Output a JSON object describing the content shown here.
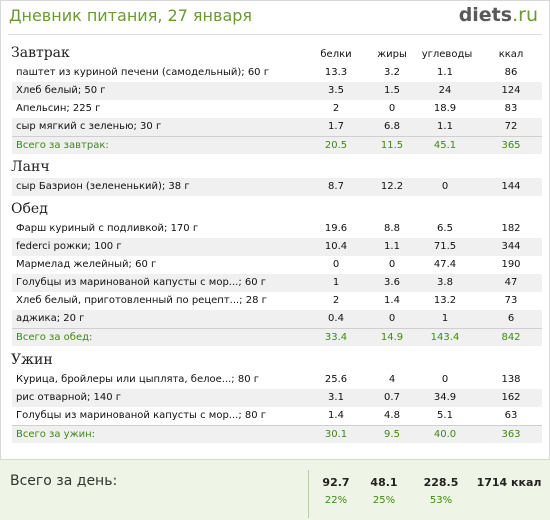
{
  "header": {
    "title": "Дневник питания, 27 января",
    "logo_main": "diets",
    "logo_tld": ".ru"
  },
  "columns": {
    "protein": "белки",
    "fat": "жиры",
    "carbs": "углеводы",
    "kcal": "ккал"
  },
  "sections": [
    {
      "title": "Завтрак",
      "items": [
        {
          "name": "паштет из куриной печени (самодельный); 60 г",
          "protein": "13.3",
          "fat": "3.2",
          "carbs": "1.1",
          "kcal": "86"
        },
        {
          "name": "Хлеб белый; 50 г",
          "protein": "3.5",
          "fat": "1.5",
          "carbs": "24",
          "kcal": "124"
        },
        {
          "name": "Апельсин; 225 г",
          "protein": "2",
          "fat": "0",
          "carbs": "18.9",
          "kcal": "83"
        },
        {
          "name": "сыр мягкий с зеленью; 30 г",
          "protein": "1.7",
          "fat": "6.8",
          "carbs": "1.1",
          "kcal": "72"
        }
      ],
      "total": {
        "name": "Всего за завтрак:",
        "protein": "20.5",
        "fat": "11.5",
        "carbs": "45.1",
        "kcal": "365"
      }
    },
    {
      "title": "Ланч",
      "items": [
        {
          "name": "сыр Базрион (зелененький); 38 г",
          "protein": "8.7",
          "fat": "12.2",
          "carbs": "0",
          "kcal": "144"
        }
      ]
    },
    {
      "title": "Обед",
      "items": [
        {
          "name": "Фарш куриный с подливкой; 170 г",
          "protein": "19.6",
          "fat": "8.8",
          "carbs": "6.5",
          "kcal": "182"
        },
        {
          "name": "federci рожки; 100 г",
          "protein": "10.4",
          "fat": "1.1",
          "carbs": "71.5",
          "kcal": "344"
        },
        {
          "name": "Мармелад желейный; 60 г",
          "protein": "0",
          "fat": "0",
          "carbs": "47.4",
          "kcal": "190"
        },
        {
          "name": "Голубцы из маринованой капусты с мор...; 60 г",
          "protein": "1",
          "fat": "3.6",
          "carbs": "3.8",
          "kcal": "47"
        },
        {
          "name": "Хлеб белый, приготовленный по рецепт...; 28 г",
          "protein": "2",
          "fat": "1.4",
          "carbs": "13.2",
          "kcal": "73"
        },
        {
          "name": "аджика; 20 г",
          "protein": "0.4",
          "fat": "0",
          "carbs": "1",
          "kcal": "6"
        }
      ],
      "total": {
        "name": "Всего за обед:",
        "protein": "33.4",
        "fat": "14.9",
        "carbs": "143.4",
        "kcal": "842"
      }
    },
    {
      "title": "Ужин",
      "items": [
        {
          "name": "Курица, бройлеры или цыплята, белое...; 80 г",
          "protein": "25.6",
          "fat": "4",
          "carbs": "0",
          "kcal": "138"
        },
        {
          "name": "рис отварной; 140 г",
          "protein": "3.1",
          "fat": "0.7",
          "carbs": "34.9",
          "kcal": "162"
        },
        {
          "name": "Голубцы из маринованой капусты с мор...; 80 г",
          "protein": "1.4",
          "fat": "4.8",
          "carbs": "5.1",
          "kcal": "63"
        }
      ],
      "total": {
        "name": "Всего за ужин:",
        "protein": "30.1",
        "fat": "9.5",
        "carbs": "40.0",
        "kcal": "363"
      }
    }
  ],
  "day_total": {
    "label": "Всего за день:",
    "protein": "92.7",
    "fat": "48.1",
    "carbs": "228.5",
    "kcal": "1714 ккал",
    "protein_pct": "22%",
    "fat_pct": "25%",
    "carbs_pct": "53%"
  },
  "colors": {
    "accent_green": "#6b9a33",
    "total_green": "#3d8a12",
    "logo_grey": "#595959",
    "row_alt": "#f0f0f0",
    "day_bg": "#eef5e6"
  }
}
